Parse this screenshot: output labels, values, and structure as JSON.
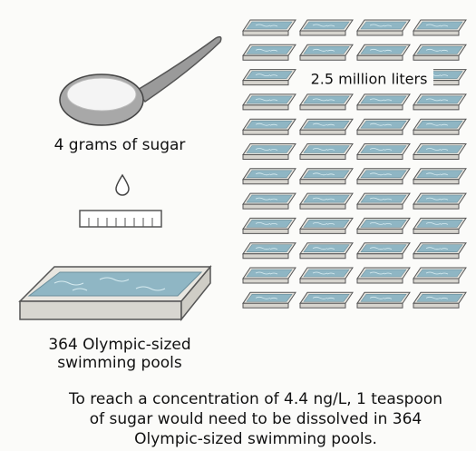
{
  "sugar_label": "4 grams of sugar",
  "volume_label": "2.5 million liters",
  "pools_label": [
    "364 Olympic-sized",
    "swimming pools"
  ],
  "caption": [
    "To reach a concentration of 4.4 ng/L, 1 teaspoon",
    "of sugar would need to be dissolved in 364",
    "Olympic-sized swimming pools."
  ]
}
